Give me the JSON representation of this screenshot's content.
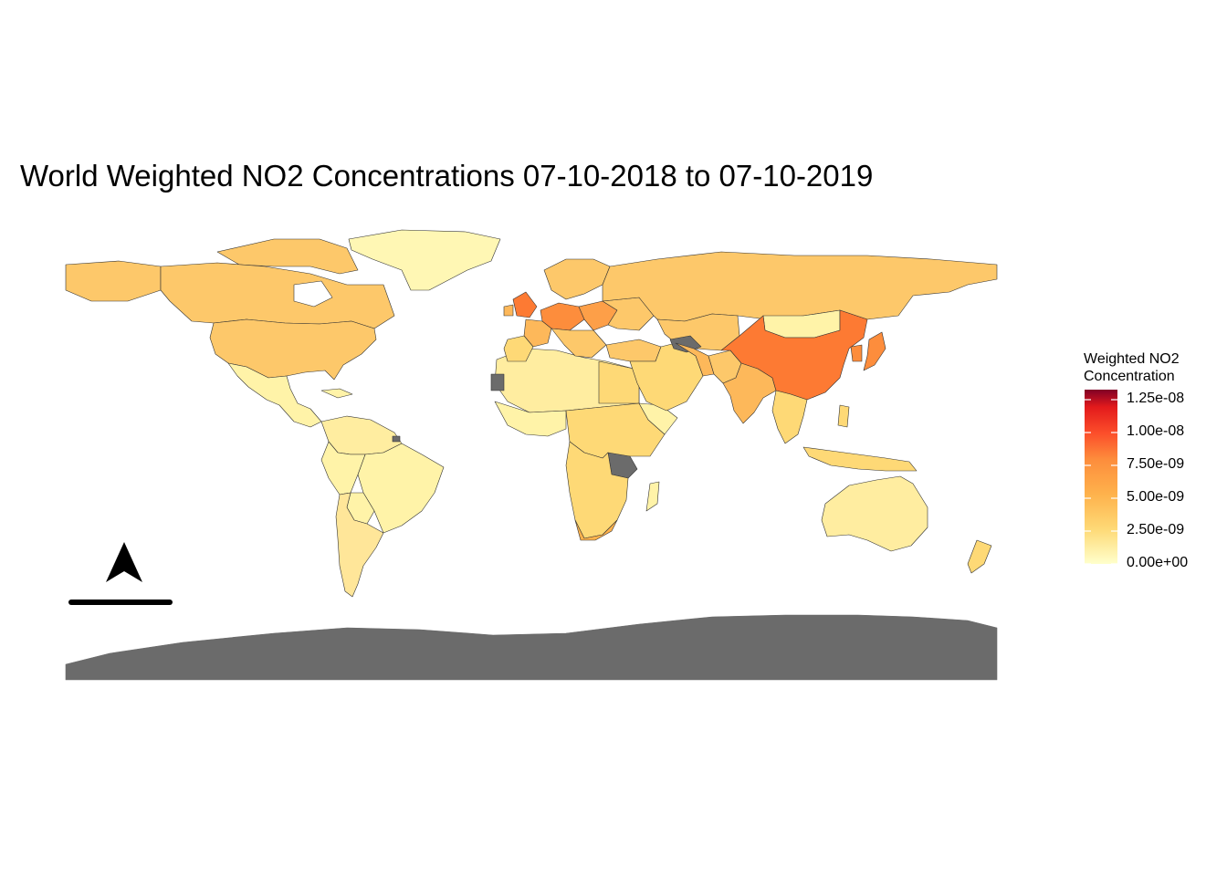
{
  "title": "World Weighted NO2 Concentrations 07-10-2018 to 07-10-2019",
  "legend": {
    "title_line1": "Weighted NO2",
    "title_line2": "Concentration",
    "labels": [
      "1.25e-08",
      "1.00e-08",
      "7.50e-09",
      "5.00e-09",
      "2.50e-09",
      "0.00e+00"
    ],
    "range": [
      0,
      1.3e-08
    ],
    "colors": [
      "#ffffcc",
      "#ffeda0",
      "#fed976",
      "#feb24c",
      "#fd8d3c",
      "#fc4e2a",
      "#e31a1c",
      "#bd0026",
      "#800026"
    ]
  },
  "colors": {
    "no_data": "#6b6b6b",
    "border": "#333333",
    "background": "#ffffff"
  },
  "map_elements": {
    "north_arrow_icon": "north-arrow-icon",
    "scale_bar": "scale-bar"
  }
}
